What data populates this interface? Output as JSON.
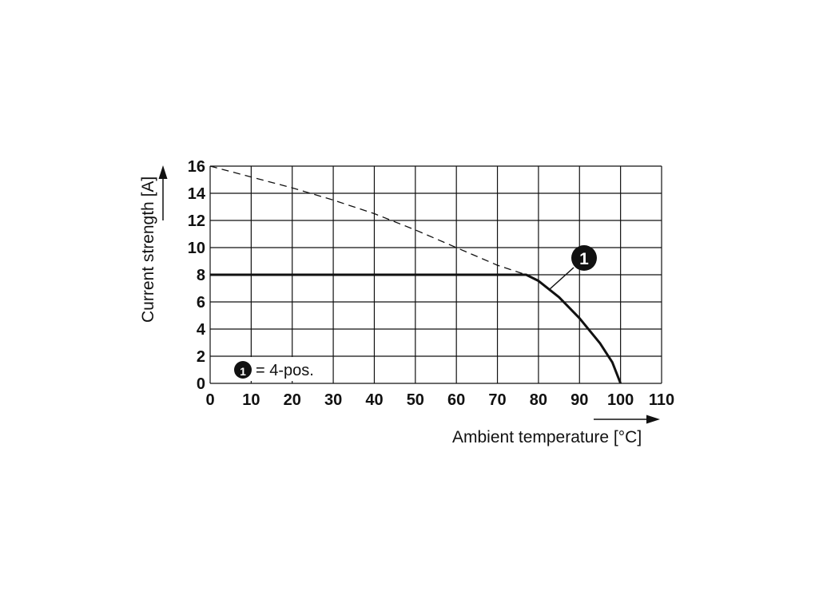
{
  "chart_data": {
    "type": "line",
    "xlabel": "Ambient temperature [°C]",
    "ylabel": "Current strength [A]",
    "xlim": [
      0,
      110
    ],
    "ylim": [
      0,
      16
    ],
    "x_ticks": [
      0,
      10,
      20,
      30,
      40,
      50,
      60,
      70,
      80,
      90,
      100,
      110
    ],
    "y_ticks": [
      0,
      2,
      4,
      6,
      8,
      10,
      12,
      14,
      16
    ],
    "grid": true,
    "series": [
      {
        "marker": "1",
        "style": "solid",
        "points": [
          [
            0,
            8
          ],
          [
            77,
            8
          ],
          [
            80,
            7.55
          ],
          [
            85,
            6.35
          ],
          [
            90,
            4.8
          ],
          [
            95,
            2.95
          ],
          [
            98,
            1.55
          ],
          [
            100,
            0
          ]
        ]
      },
      {
        "style": "dashed",
        "points": [
          [
            0,
            16
          ],
          [
            10,
            15.2
          ],
          [
            20,
            14.4
          ],
          [
            30,
            13.5
          ],
          [
            40,
            12.5
          ],
          [
            50,
            11.3
          ],
          [
            60,
            10.0
          ],
          [
            70,
            8.7
          ],
          [
            77,
            8
          ]
        ]
      }
    ],
    "legend": {
      "marker": "1",
      "text": "= 4-pos.",
      "position": "bottom-left"
    },
    "annotation": {
      "marker": "1"
    }
  }
}
